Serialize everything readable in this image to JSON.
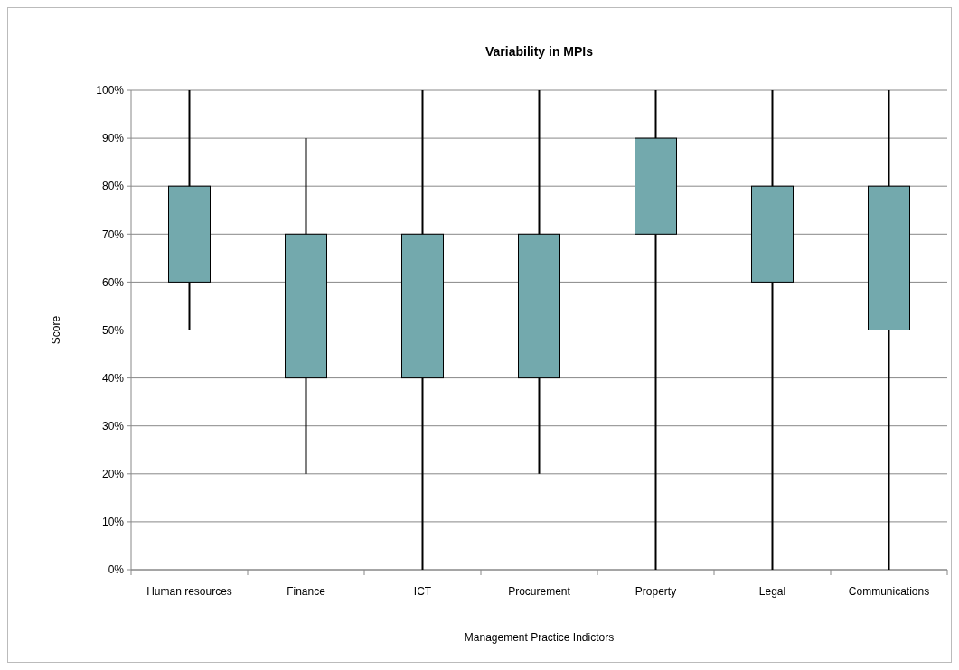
{
  "chart_data": {
    "type": "candlestick",
    "title": "Variability in MPIs",
    "xlabel": "Management Practice Indictors",
    "ylabel": "Score",
    "categories": [
      "Human resources",
      "Finance",
      "ICT",
      "Procurement",
      "Property",
      "Legal",
      "Communications"
    ],
    "ohlc": [
      [
        60,
        100,
        50,
        80
      ],
      [
        40,
        90,
        20,
        70
      ],
      [
        40,
        100,
        0,
        70
      ],
      [
        40,
        100,
        20,
        70
      ],
      [
        70,
        100,
        0,
        90
      ],
      [
        60,
        100,
        0,
        80
      ],
      [
        50,
        100,
        0,
        80
      ]
    ],
    "color": "#73a9ad",
    "ylim": [
      0,
      100
    ],
    "yticks": [
      {
        "value": 0,
        "label": "0%"
      },
      {
        "value": 10,
        "label": "10%"
      },
      {
        "value": 20,
        "label": "20%"
      },
      {
        "value": 30,
        "label": "30%"
      },
      {
        "value": 40,
        "label": "40%"
      },
      {
        "value": 50,
        "label": "50%"
      },
      {
        "value": 60,
        "label": "60%"
      },
      {
        "value": 70,
        "label": "70%"
      },
      {
        "value": 80,
        "label": "80%"
      },
      {
        "value": 90,
        "label": "90%"
      },
      {
        "value": 100,
        "label": "100%"
      }
    ],
    "grid": "y"
  }
}
